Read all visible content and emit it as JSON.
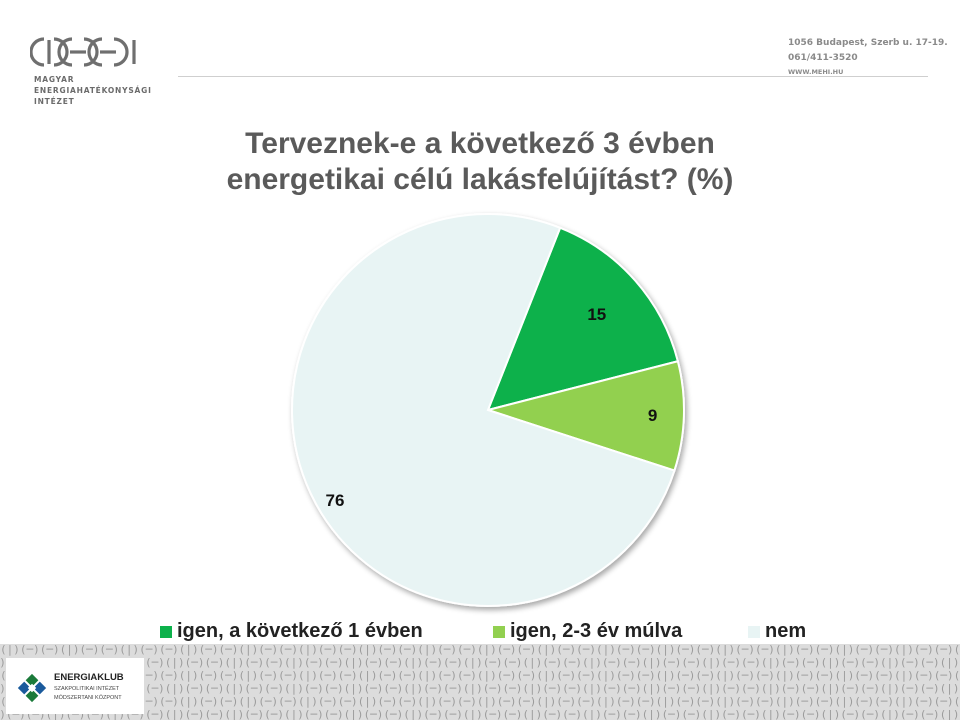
{
  "header": {
    "logo_lines": [
      "MAGYAR",
      "ENERGIAHATÉKONYSÁGI",
      "INTÉZET"
    ],
    "address_line1": "1056 Budapest, Szerb u. 17-19.",
    "address_line2": "061/411-3520",
    "address_line3": "WWW.MEHI.HU"
  },
  "title_line1": "Terveznek-e a következő 3 évben",
  "title_line2": "energetikai célú lakásfelújítást?  (%)",
  "colors": {
    "igen1": "#0db14b",
    "igen23": "#92d050",
    "nem": "#e8f4f4"
  },
  "chart_data": {
    "type": "pie",
    "title": "Terveznek-e a következő 3 évben energetikai célú lakásfelújítást?  (%)",
    "slices": [
      {
        "label": "igen, a következő 1 évben",
        "value": 15,
        "color": "#0db14b"
      },
      {
        "label": "igen, 2-3 év múlva",
        "value": 9,
        "color": "#92d050"
      },
      {
        "label": "nem",
        "value": 76,
        "color": "#e8f4f4"
      }
    ],
    "legend_position": "bottom"
  },
  "footer": {
    "pattern_unit": "(|)(─)(─)",
    "ek_name": "ENERGIAKLUB",
    "ek_sub1": "SZAKPOLITIKAI INTÉZET",
    "ek_sub2": "MÓDSZERTANI KÖZPONT"
  }
}
